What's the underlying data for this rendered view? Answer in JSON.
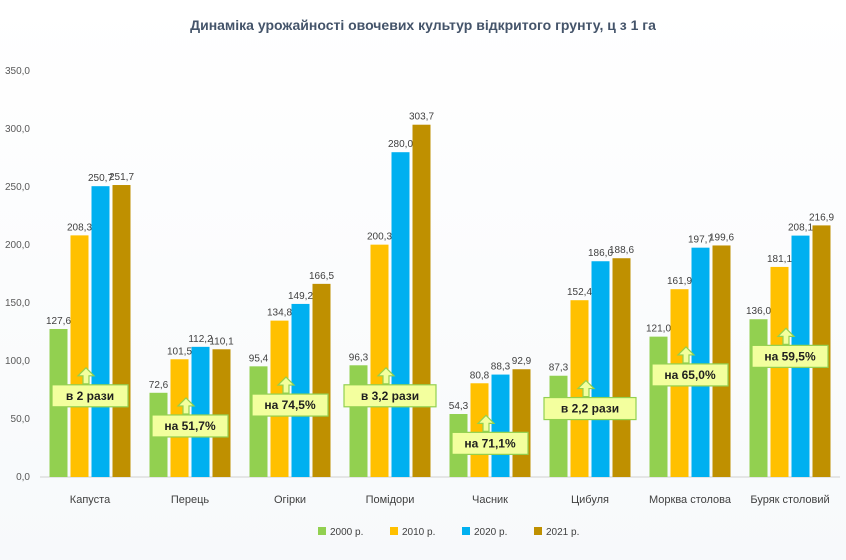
{
  "chart_data": {
    "type": "bar",
    "title": "Динаміка урожайності овочевих культур відкритого грунту, ц з 1 га",
    "categories": [
      "Капуста",
      "Перець",
      "Огірки",
      "Помідори",
      "Часник",
      "Цибуля",
      "Морква столова",
      "Буряк столовий"
    ],
    "series": [
      {
        "name": "2000 р.",
        "color": "#92d050",
        "values": [
          127.6,
          72.6,
          95.4,
          96.3,
          54.3,
          87.3,
          121.0,
          136.0
        ],
        "labels": [
          "127,6",
          "72,6",
          "95,4",
          "96,3",
          "54,3",
          "87,3",
          "121,0",
          "136,0"
        ]
      },
      {
        "name": "2010 р.",
        "color": "#ffc000",
        "values": [
          208.3,
          101.5,
          134.8,
          200.3,
          80.8,
          152.4,
          161.9,
          181.1
        ],
        "labels": [
          "208,3",
          "101,5",
          "134,8",
          "200,3",
          "80,8",
          "152,4",
          "161,9",
          "181,1"
        ]
      },
      {
        "name": "2020 р.",
        "color": "#00b0f0",
        "values": [
          250.7,
          112.2,
          149.2,
          280.0,
          88.3,
          186.0,
          197.7,
          208.1
        ],
        "labels": [
          "250,7",
          "112,2",
          "149,2",
          "280,0",
          "88,3",
          "186,0",
          "197,7",
          "208,1"
        ]
      },
      {
        "name": "2021 р.",
        "color": "#bf9000",
        "values": [
          251.7,
          110.1,
          166.5,
          303.7,
          92.9,
          188.6,
          199.6,
          216.9
        ],
        "labels": [
          "251,7",
          "110,1",
          "166,5",
          "303,7",
          "92,9",
          "188,6",
          "199,6",
          "216,9"
        ]
      }
    ],
    "ylim": [
      0,
      350
    ],
    "yticks": [
      0,
      50,
      100,
      150,
      200,
      250,
      300,
      350
    ],
    "ytick_labels": [
      "0,0",
      "50,0",
      "100,0",
      "150,0",
      "200,0",
      "250,0",
      "300,0",
      "350,0"
    ],
    "grid": false,
    "legend_position": "bottom",
    "annotations": [
      {
        "category": "Капуста",
        "text": "в 2 рази",
        "level": 70
      },
      {
        "category": "Перець",
        "text": "на 51,7%",
        "level": 44
      },
      {
        "category": "Огірки",
        "text": "на 74,5%",
        "level": 62
      },
      {
        "category": "Помідори",
        "text": "в 3,2 рази",
        "level": 70
      },
      {
        "category": "Часник",
        "text": "на 71,1%",
        "level": 29
      },
      {
        "category": "Цибуля",
        "text": "в 2,2 рази",
        "level": 59
      },
      {
        "category": "Морква столова",
        "text": "на 65,0%",
        "level": 88
      },
      {
        "category": "Буряк столовий",
        "text": "на 59,5%",
        "level": 104
      }
    ],
    "annotation_colors": {
      "fill": "#f3ff9e",
      "stroke": "#92d050"
    }
  }
}
